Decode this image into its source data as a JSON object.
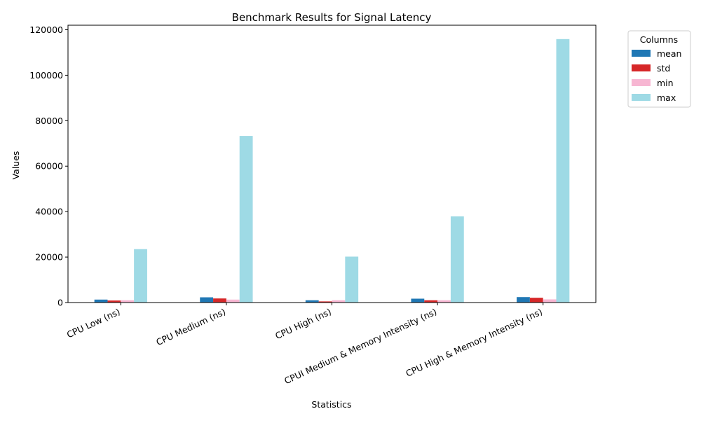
{
  "chart_data": {
    "type": "bar",
    "title": "Benchmark Results for Signal Latency",
    "xlabel": "Statistics",
    "ylabel": "Values",
    "categories": [
      "CPU Low (ns)",
      "CPU Medium (ns)",
      "CPU High (ns)",
      "CPUI Medium & Memory Intensity (ns)",
      "CPU High & Memory Intensity (ns)"
    ],
    "series": [
      {
        "name": "mean",
        "color": "#1f77b4",
        "values": [
          1300,
          2300,
          1000,
          1700,
          2400
        ]
      },
      {
        "name": "std",
        "color": "#d62728",
        "values": [
          900,
          1800,
          500,
          1000,
          2100
        ]
      },
      {
        "name": "min",
        "color": "#f7b6d2",
        "values": [
          1000,
          1300,
          1000,
          1000,
          1400
        ]
      },
      {
        "name": "max",
        "color": "#9edae5",
        "values": [
          23500,
          73300,
          20200,
          37900,
          115900
        ]
      }
    ],
    "ylim": [
      0,
      122000
    ],
    "yticks": [
      0,
      20000,
      40000,
      60000,
      80000,
      100000,
      120000
    ],
    "ytick_labels": [
      "0",
      "20000",
      "40000",
      "60000",
      "80000",
      "100000",
      "120000"
    ],
    "legend": {
      "title": "Columns",
      "placement": "outside-top-right"
    },
    "grid": false
  }
}
